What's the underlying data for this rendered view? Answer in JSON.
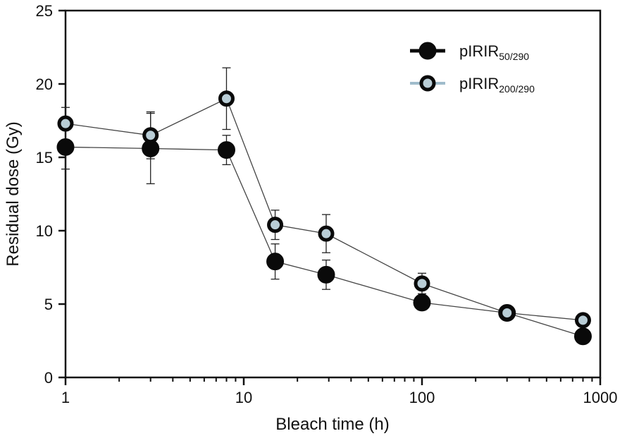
{
  "chart_data": {
    "type": "line",
    "xlabel": "Bleach time (h)",
    "ylabel": "Residual dose (Gy)",
    "xscale": "log",
    "xlim": [
      1,
      1000
    ],
    "ylim": [
      0,
      25
    ],
    "x_ticks": [
      1,
      10,
      100,
      1000
    ],
    "x_tick_labels": [
      "1",
      "10",
      "100",
      "1000"
    ],
    "y_ticks": [
      0,
      5,
      10,
      15,
      20,
      25
    ],
    "y_tick_labels": [
      "0",
      "5",
      "10",
      "15",
      "20",
      "25"
    ],
    "grid": false,
    "legend_position": "top-right",
    "x": [
      1,
      3,
      8,
      15,
      29,
      100,
      300,
      800
    ],
    "series": [
      {
        "name": "pIRIR50/290",
        "label_main": "pIRIR",
        "label_sub": "50/290",
        "marker_fill": "#0a0a0a",
        "marker_stroke": "#0a0a0a",
        "legend_line_color": "#0a0a0a",
        "y": [
          15.7,
          15.6,
          15.5,
          7.9,
          7.0,
          5.1,
          4.4,
          2.8
        ],
        "err": [
          1.5,
          2.4,
          1.0,
          1.2,
          1.0,
          0.5,
          0.3,
          0.3
        ]
      },
      {
        "name": "pIRIR200/290",
        "label_main": "pIRIR",
        "label_sub": "200/290",
        "marker_fill": "#b9cdd6",
        "marker_stroke": "#0a0a0a",
        "legend_line_color": "#9fbccb",
        "y": [
          17.3,
          16.5,
          19.0,
          10.4,
          9.8,
          6.4,
          4.4,
          3.9
        ],
        "err": [
          1.1,
          1.6,
          2.1,
          1.0,
          1.3,
          0.7,
          0.3,
          0.3
        ]
      }
    ]
  }
}
